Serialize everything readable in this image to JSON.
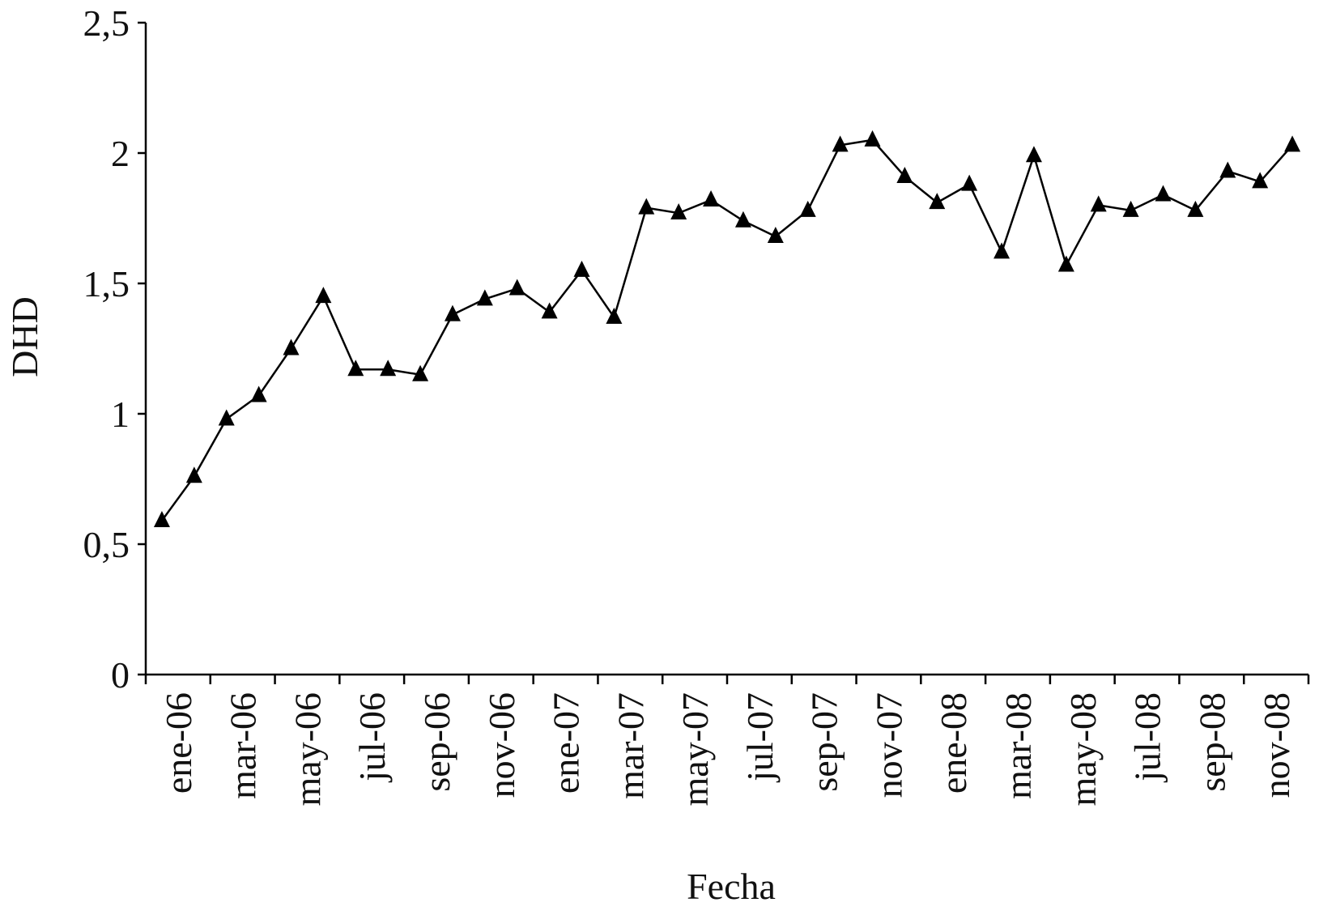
{
  "chart_data": {
    "type": "line",
    "title": "",
    "xlabel": "Fecha",
    "ylabel": "DHD",
    "ylim": [
      0,
      2.5
    ],
    "yticks": [
      "0",
      "0,5",
      "1",
      "1,5",
      "2",
      "2,5"
    ],
    "tick_labels": [
      "ene-06",
      "mar-06",
      "may-06",
      "jul-06",
      "sep-06",
      "nov-06",
      "ene-07",
      "mar-07",
      "may-07",
      "jul-07",
      "sep-07",
      "nov-07",
      "ene-08",
      "mar-08",
      "may-08",
      "jul-08",
      "sep-08",
      "nov-08"
    ],
    "x": [
      "ene-06",
      "feb-06",
      "mar-06",
      "abr-06",
      "may-06",
      "jun-06",
      "jul-06",
      "ago-06",
      "sep-06",
      "oct-06",
      "nov-06",
      "dic-06",
      "ene-07",
      "feb-07",
      "mar-07",
      "abr-07",
      "may-07",
      "jun-07",
      "jul-07",
      "ago-07",
      "sep-07",
      "oct-07",
      "nov-07",
      "dic-07",
      "ene-08",
      "feb-08",
      "mar-08",
      "abr-08",
      "may-08",
      "jun-08",
      "jul-08",
      "ago-08",
      "sep-08",
      "oct-08",
      "nov-08",
      "dic-08"
    ],
    "series": [
      {
        "values": [
          0.59,
          0.76,
          0.98,
          1.07,
          1.25,
          1.45,
          1.17,
          1.17,
          1.15,
          1.38,
          1.44,
          1.48,
          1.39,
          1.55,
          1.37,
          1.79,
          1.77,
          1.82,
          1.74,
          1.68,
          1.78,
          2.03,
          2.05,
          1.91,
          1.81,
          1.88,
          1.62,
          1.99,
          1.57,
          1.8,
          1.78,
          1.84,
          1.78,
          1.93,
          1.89,
          2.03
        ],
        "color": "#000000",
        "marker": "triangle"
      }
    ],
    "grid": false,
    "legend": "none"
  }
}
